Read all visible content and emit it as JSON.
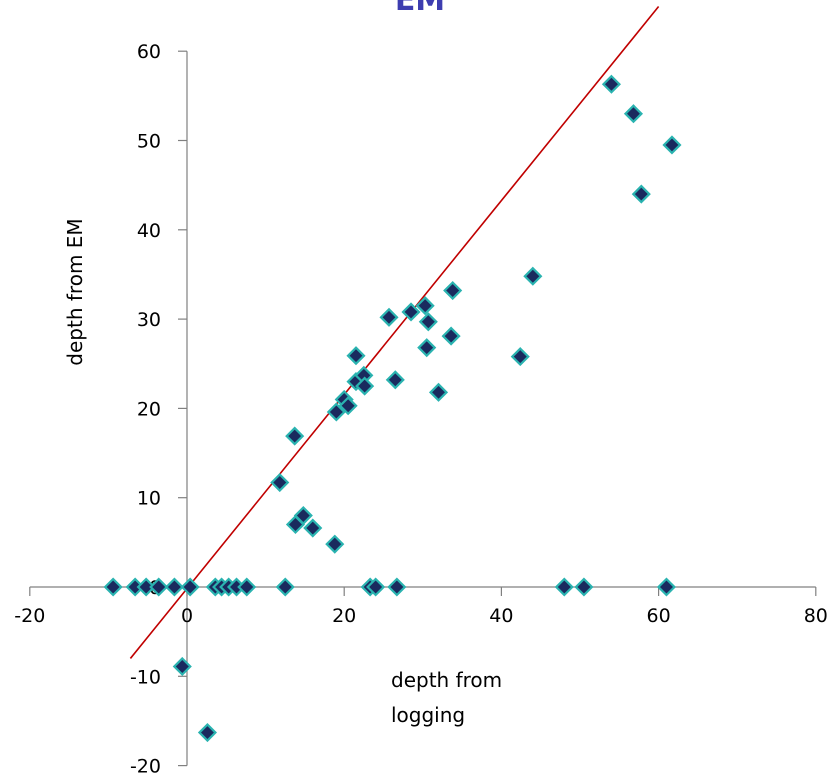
{
  "chart_data": {
    "type": "scatter",
    "title": "EM",
    "xlabel_lines": [
      "depth from",
      "logging"
    ],
    "ylabel": "depth from EM",
    "xlim": [
      -20,
      80
    ],
    "ylim": [
      -20,
      60
    ],
    "x_ticks": [
      -20,
      0,
      20,
      40,
      60,
      80
    ],
    "y_ticks": [
      -20,
      -10,
      0,
      10,
      20,
      30,
      40,
      50,
      60
    ],
    "grid": false,
    "legend": "none",
    "trend_line": {
      "points": [
        [
          -7.2,
          -8
        ],
        [
          60,
          65
        ]
      ],
      "color": "#c00000"
    },
    "series": [
      {
        "marker": "diamond",
        "fill": "#1a2a5e",
        "edge": "#2ab3b0",
        "points": [
          [
            54,
            56.3
          ],
          [
            56.8,
            53
          ],
          [
            61.7,
            49.5
          ],
          [
            57.8,
            44
          ],
          [
            44,
            34.8
          ],
          [
            33.8,
            33.2
          ],
          [
            28.5,
            30.8
          ],
          [
            25.7,
            30.2
          ],
          [
            30.3,
            31.5
          ],
          [
            30.7,
            29.7
          ],
          [
            33.6,
            28.1
          ],
          [
            30.5,
            26.8
          ],
          [
            42.4,
            25.8
          ],
          [
            21.5,
            25.9
          ],
          [
            21.5,
            23
          ],
          [
            22.5,
            23.7
          ],
          [
            22.6,
            22.5
          ],
          [
            26.5,
            23.2
          ],
          [
            32,
            21.8
          ],
          [
            20,
            21
          ],
          [
            20.5,
            20.3
          ],
          [
            19,
            19.6
          ],
          [
            13.7,
            16.9
          ],
          [
            11.8,
            11.7
          ],
          [
            14.8,
            8
          ],
          [
            13.8,
            7
          ],
          [
            16,
            6.6
          ],
          [
            18.8,
            4.8
          ],
          [
            -9.4,
            0
          ],
          [
            -6.6,
            0
          ],
          [
            -5.2,
            0
          ],
          [
            -3.6,
            0
          ],
          [
            -1.6,
            0
          ],
          [
            0.4,
            0
          ],
          [
            3.6,
            0
          ],
          [
            4.4,
            0
          ],
          [
            5.3,
            0
          ],
          [
            6.3,
            0
          ],
          [
            7.6,
            0
          ],
          [
            12.5,
            0
          ],
          [
            23.3,
            0
          ],
          [
            24,
            0
          ],
          [
            26.7,
            0
          ],
          [
            48,
            0
          ],
          [
            50.5,
            0
          ],
          [
            61,
            0
          ],
          [
            -0.6,
            -8.9
          ],
          [
            2.6,
            -16.3
          ]
        ]
      }
    ]
  }
}
